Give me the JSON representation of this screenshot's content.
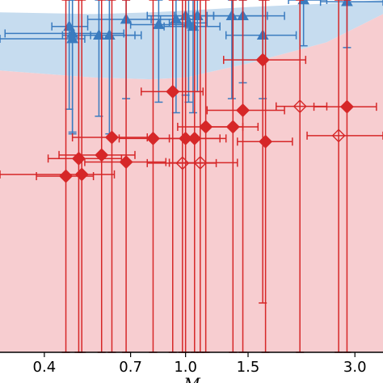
{
  "chart_data": {
    "type": "scatter",
    "title": "",
    "xlabel": "M",
    "ylabel": "",
    "x_scale": "log",
    "xlim": [
      0.3,
      3.6
    ],
    "ylim": [
      0,
      1
    ],
    "x_ticks": [
      0.4,
      0.7,
      1.0,
      1.5,
      3.0
    ],
    "x_tick_labels": [
      "0.4",
      "0.7",
      "1.0",
      "1.5",
      "3.0"
    ],
    "grid": false,
    "colors": {
      "red": "#d62728",
      "red_band": "#f7cdd0",
      "blue": "#3a7bbf",
      "blue_band": "#c6dcef"
    },
    "bands": [
      {
        "name": "",
        "color": "red_band",
        "x": [
          0.3,
          0.55,
          0.8,
          1.0,
          1.5,
          2.5,
          3.6
        ],
        "lower": [
          0.0,
          0.0,
          0.0,
          0.0,
          0.0,
          0.0,
          0.0
        ],
        "upper": [
          0.8,
          0.78,
          0.775,
          0.78,
          0.82,
          0.88,
          0.96
        ]
      },
      {
        "name": "",
        "color": "blue_band",
        "x": [
          0.3,
          0.55,
          0.8,
          1.0,
          1.5,
          2.5,
          3.6
        ],
        "lower": [
          0.8,
          0.78,
          0.775,
          0.78,
          0.82,
          0.88,
          0.96
        ],
        "upper": [
          0.965,
          0.96,
          0.965,
          0.97,
          0.98,
          0.99,
          1.0
        ]
      }
    ],
    "series": [
      {
        "name": "",
        "color": "blue",
        "marker": "triangle",
        "points": [
          {
            "x": 0.47,
            "y": 0.925,
            "xerr": [
              0.42,
              0.53
            ],
            "yerr": [
              0.69,
              1.0
            ]
          },
          {
            "x": 0.48,
            "y": 0.905,
            "xerr": [
              0.31,
              0.67
            ],
            "yerr": [
              0.625,
              1.0
            ]
          },
          {
            "x": 0.48,
            "y": 0.89,
            "xerr": [
              0.3,
              0.52
            ],
            "yerr": [
              0.62,
              1.0
            ]
          },
          {
            "x": 0.57,
            "y": 0.9,
            "xerr": [
              0.45,
              0.75
            ],
            "yerr": [
              0.67,
              1.0
            ]
          },
          {
            "x": 0.61,
            "y": 0.9,
            "xerr": [
              0.54,
              0.72
            ],
            "yerr": [
              0.62,
              1.0
            ]
          },
          {
            "x": 0.68,
            "y": 0.945,
            "xerr": [
              0.53,
              0.85
            ],
            "yerr": [
              0.72,
              1.0
            ]
          },
          {
            "x": 0.84,
            "y": 0.93,
            "xerr": [
              0.7,
              1.01
            ],
            "yerr": [
              0.71,
              1.0
            ]
          },
          {
            "x": 0.94,
            "y": 0.945,
            "xerr": [
              0.8,
              1.1
            ],
            "yerr": [
              0.68,
              1.0
            ]
          },
          {
            "x": 1.0,
            "y": 0.955,
            "xerr": [
              0.78,
              1.2
            ],
            "yerr": [
              0.73,
              1.0
            ]
          },
          {
            "x": 1.02,
            "y": 0.935,
            "xerr": [
              0.9,
              1.15
            ],
            "yerr": [
              0.71,
              1.0
            ]
          },
          {
            "x": 1.05,
            "y": 0.925,
            "xerr": [
              0.87,
              1.25
            ],
            "yerr": [
              0.68,
              1.0
            ]
          },
          {
            "x": 1.08,
            "y": 0.955,
            "xerr": [
              0.93,
              1.2
            ],
            "yerr": [
              0.74,
              1.0
            ]
          },
          {
            "x": 1.35,
            "y": 0.955,
            "xerr": [
              1.05,
              1.7
            ],
            "yerr": [
              0.72,
              1.0
            ]
          },
          {
            "x": 1.45,
            "y": 0.955,
            "xerr": [
              1.15,
              1.9
            ],
            "yerr": [
              0.765,
              1.0
            ]
          },
          {
            "x": 1.65,
            "y": 0.9,
            "xerr": [
              1.3,
              2.05
            ],
            "yerr": [
              0.72,
              1.0
            ]
          },
          {
            "x": 2.15,
            "y": 1.0,
            "xerr": [
              1.95,
              2.5
            ],
            "yerr": [
              0.87,
              1.0
            ]
          },
          {
            "x": 2.85,
            "y": 0.995,
            "xerr": [
              2.4,
              3.6
            ],
            "yerr": [
              0.865,
              1.0
            ]
          }
        ]
      },
      {
        "name": "",
        "color": "red",
        "marker": "diamond",
        "points": [
          {
            "x": 0.46,
            "y": 0.5,
            "xerr": [
              0.38,
              0.55
            ],
            "yerr": [
              0.0,
              1.0
            ],
            "open": false
          },
          {
            "x": 0.5,
            "y": 0.55,
            "xerr": [
              0.41,
              0.66
            ],
            "yerr": [
              0.0,
              1.0
            ],
            "open": false
          },
          {
            "x": 0.51,
            "y": 0.505,
            "xerr": [
              0.3,
              0.63
            ],
            "yerr": [
              0.0,
              1.0
            ],
            "open": false
          },
          {
            "x": 0.58,
            "y": 0.56,
            "xerr": [
              0.44,
              0.72
            ],
            "yerr": [
              0.0,
              1.0
            ],
            "open": false
          },
          {
            "x": 0.62,
            "y": 0.61,
            "xerr": [
              0.48,
              0.78
            ],
            "yerr": [
              0.0,
              1.0
            ],
            "open": false
          },
          {
            "x": 0.68,
            "y": 0.54,
            "xerr": [
              0.52,
              0.88
            ],
            "yerr": [
              0.0,
              1.0
            ],
            "open": false
          },
          {
            "x": 0.81,
            "y": 0.607,
            "xerr": [
              0.65,
              1.0
            ],
            "yerr": [
              0.0,
              1.0
            ],
            "open": false
          },
          {
            "x": 0.92,
            "y": 0.74,
            "xerr": [
              0.75,
              1.12
            ],
            "yerr": [
              0.0,
              1.0
            ],
            "open": false
          },
          {
            "x": 0.98,
            "y": 0.537,
            "xerr": [
              0.78,
              1.22
            ],
            "yerr": [
              0.0,
              1.0
            ],
            "open": true
          },
          {
            "x": 1.0,
            "y": 0.607,
            "xerr": [
              0.82,
              1.25
            ],
            "yerr": [
              0.0,
              1.0
            ],
            "open": false
          },
          {
            "x": 1.06,
            "y": 0.607,
            "xerr": [
              0.9,
              1.3
            ],
            "yerr": [
              0.0,
              1.0
            ],
            "open": false
          },
          {
            "x": 1.1,
            "y": 0.538,
            "xerr": [
              0.9,
              1.4
            ],
            "yerr": [
              0.0,
              1.0
            ],
            "open": true
          },
          {
            "x": 1.14,
            "y": 0.64,
            "xerr": [
              0.95,
              1.45
            ],
            "yerr": [
              0.0,
              1.0
            ],
            "open": false
          },
          {
            "x": 1.36,
            "y": 0.64,
            "xerr": [
              1.15,
              1.6
            ],
            "yerr": [
              0.0,
              1.0
            ],
            "open": false
          },
          {
            "x": 1.45,
            "y": 0.687,
            "xerr": [
              1.15,
              1.9
            ],
            "yerr": [
              0.0,
              1.0
            ],
            "open": false
          },
          {
            "x": 1.65,
            "y": 0.83,
            "xerr": [
              1.28,
              2.18
            ],
            "yerr": [
              0.14,
              1.0
            ],
            "open": false
          },
          {
            "x": 1.68,
            "y": 0.598,
            "xerr": [
              1.4,
              2.0
            ],
            "yerr": [
              0.0,
              1.0
            ],
            "open": false
          },
          {
            "x": 2.1,
            "y": 0.698,
            "xerr": [
              1.8,
              2.5
            ],
            "yerr": [
              0.0,
              1.0
            ],
            "open": true
          },
          {
            "x": 2.7,
            "y": 0.615,
            "xerr": [
              2.2,
              3.6
            ],
            "yerr": [
              0.0,
              1.0
            ],
            "open": true
          },
          {
            "x": 2.85,
            "y": 0.697,
            "xerr": [
              2.3,
              3.45
            ],
            "yerr": [
              0.0,
              1.0
            ],
            "open": false
          }
        ]
      }
    ]
  }
}
